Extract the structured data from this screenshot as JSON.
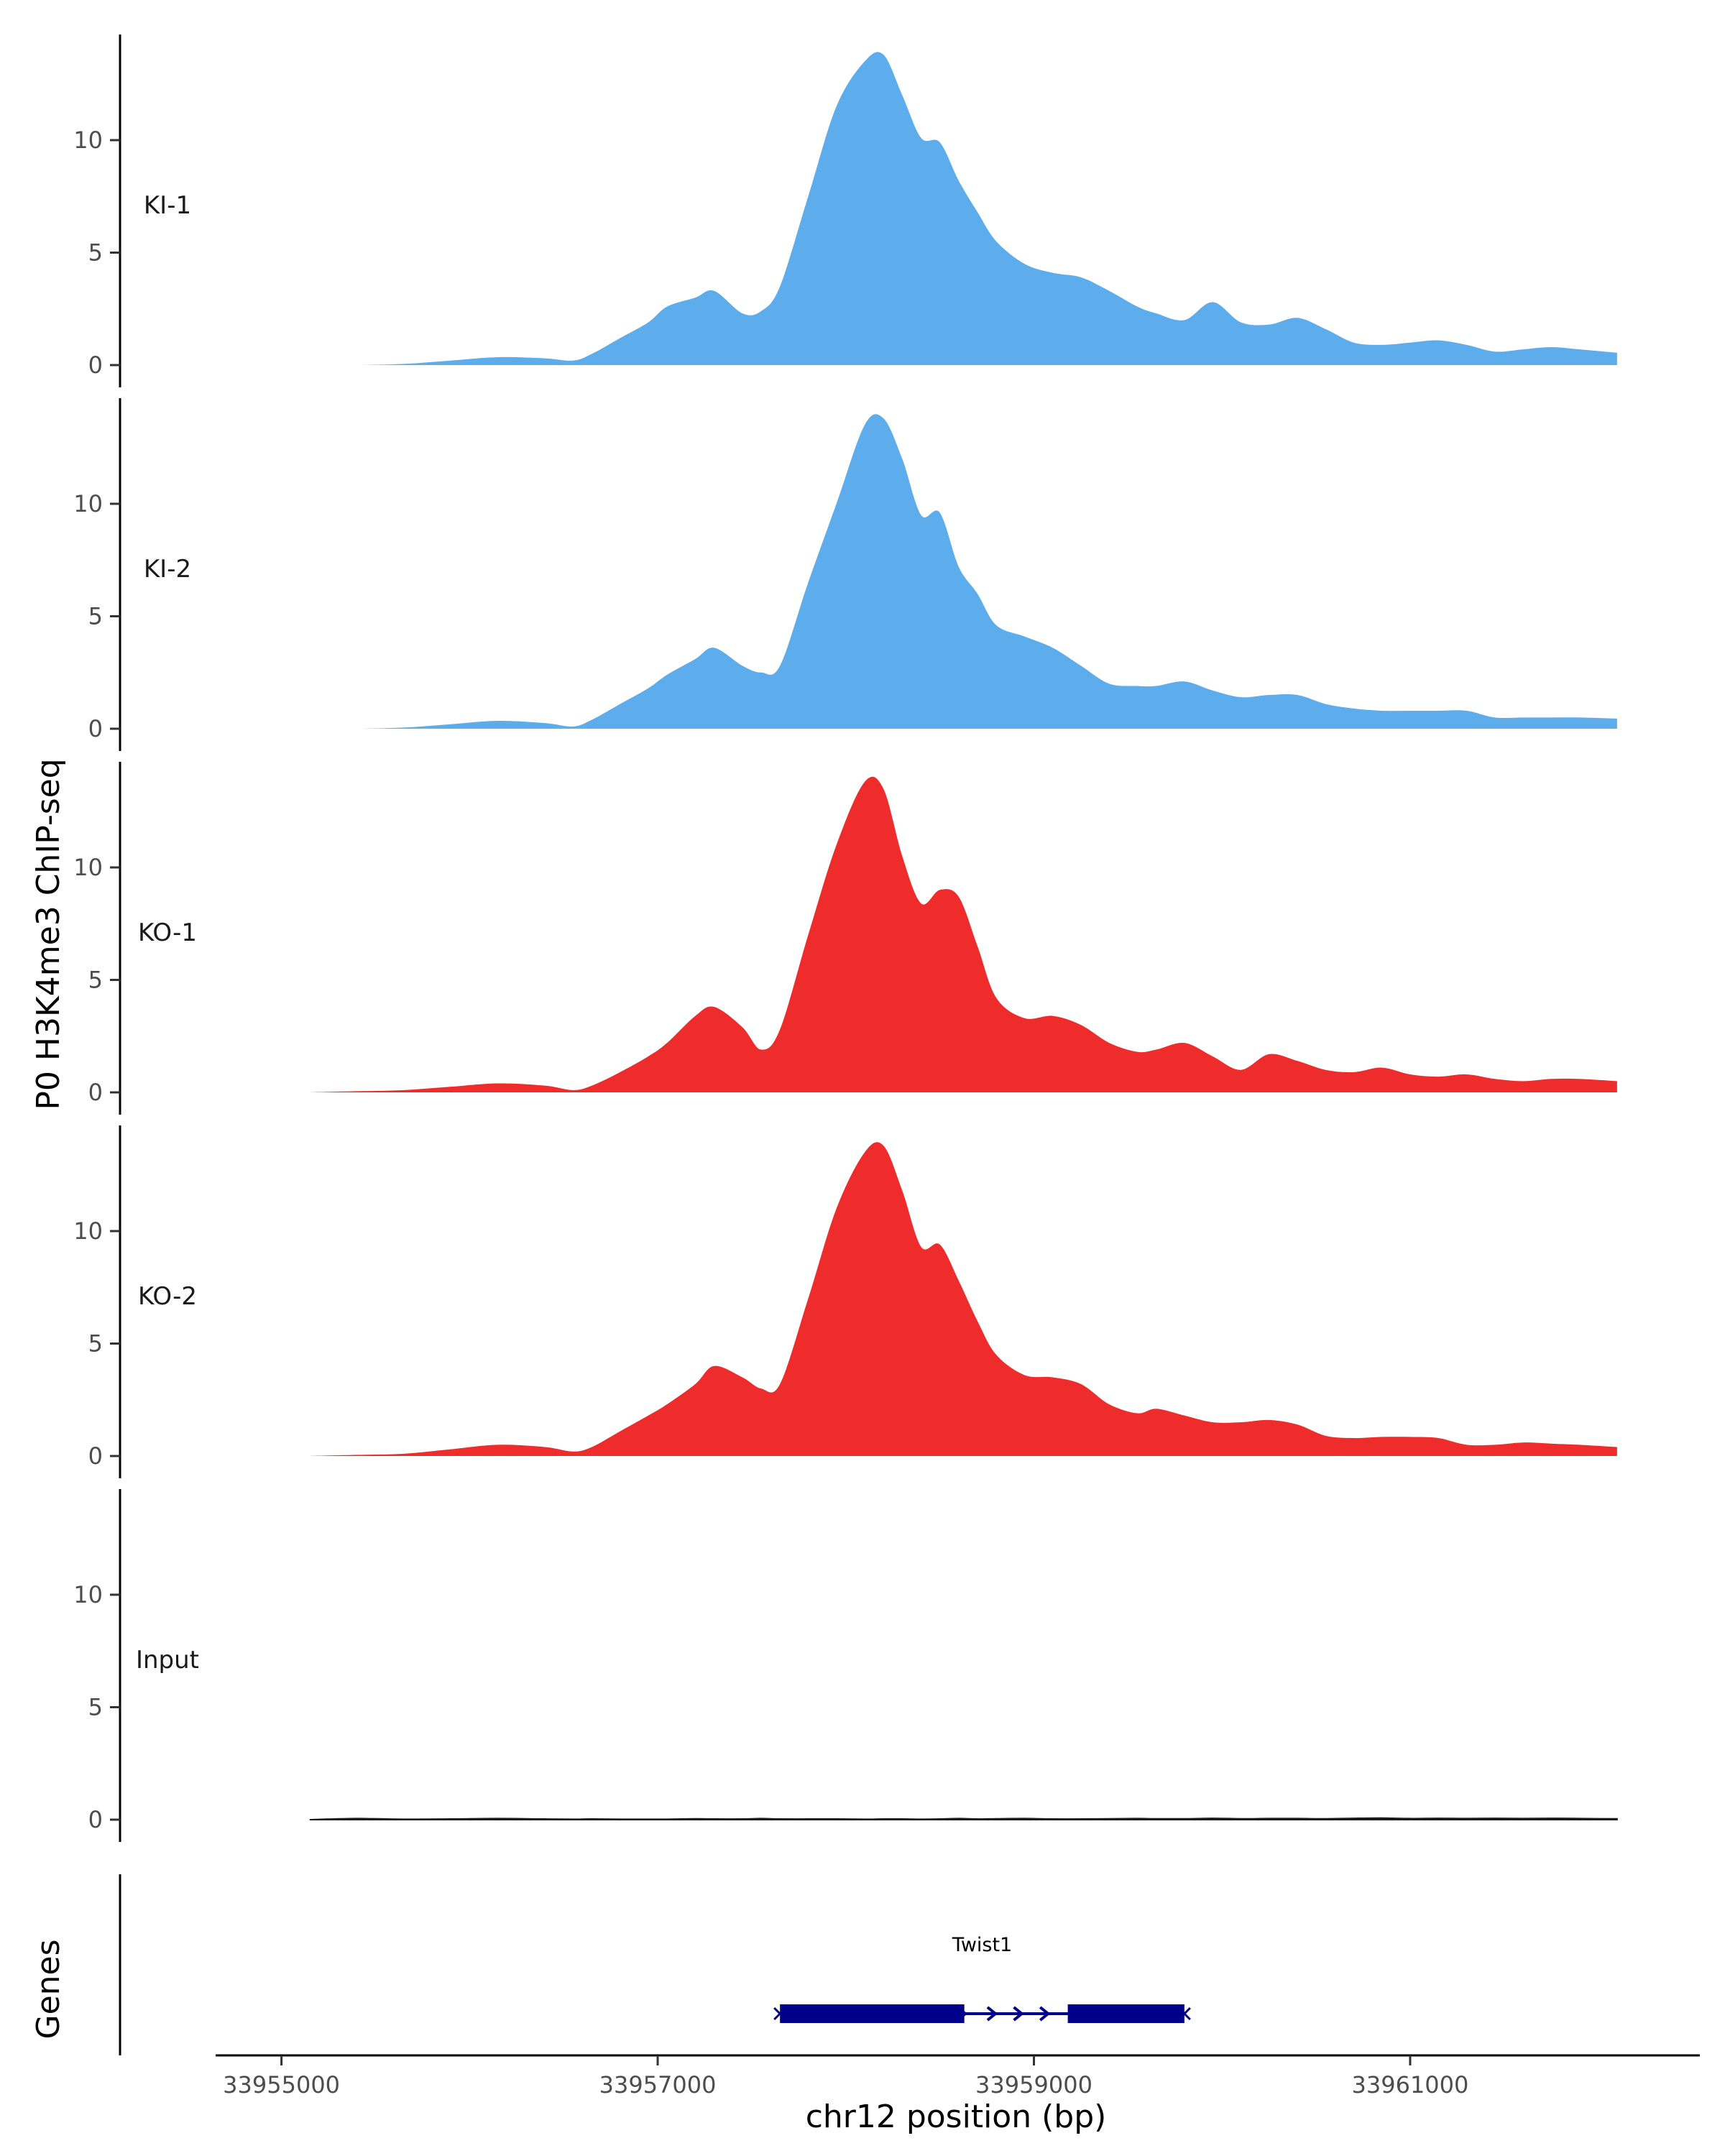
{
  "chart_data": {
    "type": "area",
    "title": "",
    "ylabel": "P0 H3K4me3 ChIP-seq",
    "xlabel": "chr12 position (bp)",
    "genes_label": "Genes",
    "xlim": [
      33954650,
      33962540
    ],
    "ylim": [
      0,
      14.6
    ],
    "x_ticks": [
      33955000,
      33957000,
      33959000,
      33961000
    ],
    "x_tick_labels": [
      "33955000",
      "33957000",
      "33959000",
      "33961000"
    ],
    "y_ticks": [
      0,
      5,
      10
    ],
    "y_tick_labels": [
      "0",
      "5",
      "10"
    ],
    "x": [
      33955150,
      33955400,
      33955650,
      33955900,
      33956150,
      33956400,
      33956550,
      33956650,
      33956800,
      33956950,
      33957050,
      33957200,
      33957300,
      33957450,
      33957550,
      33957650,
      33957800,
      33957950,
      33958100,
      33958200,
      33958300,
      33958400,
      33958500,
      33958600,
      33958700,
      33958800,
      33958950,
      33959100,
      33959250,
      33959400,
      33959550,
      33959650,
      33959800,
      33959950,
      33960100,
      33960250,
      33960400,
      33960550,
      33960700,
      33960850,
      33961000,
      33961150,
      33961300,
      33961450,
      33961600,
      33961750,
      33961900,
      33962100
    ],
    "series": [
      {
        "name": "KI-1",
        "color": "#5DADEC",
        "values": [
          0,
          0,
          0.05,
          0.2,
          0.35,
          0.3,
          0.2,
          0.5,
          1.2,
          1.9,
          2.6,
          3.0,
          3.3,
          2.3,
          2.4,
          3.5,
          7.5,
          11.5,
          13.5,
          13.8,
          12.0,
          10.1,
          9.9,
          8.2,
          6.8,
          5.5,
          4.5,
          4.1,
          3.9,
          3.3,
          2.6,
          2.3,
          2.0,
          2.8,
          1.9,
          1.8,
          2.1,
          1.6,
          1.0,
          0.9,
          1.0,
          1.1,
          0.9,
          0.6,
          0.7,
          0.8,
          0.7,
          0.55
        ]
      },
      {
        "name": "KI-2",
        "color": "#5DADEC",
        "values": [
          0,
          0,
          0.05,
          0.2,
          0.35,
          0.25,
          0.1,
          0.4,
          1.1,
          1.8,
          2.4,
          3.1,
          3.6,
          2.8,
          2.5,
          2.8,
          6.5,
          10.0,
          13.5,
          13.8,
          12.0,
          9.5,
          9.6,
          7.2,
          6.0,
          4.6,
          4.1,
          3.6,
          2.8,
          2.0,
          1.9,
          1.9,
          2.1,
          1.7,
          1.4,
          1.5,
          1.5,
          1.1,
          0.9,
          0.8,
          0.8,
          0.8,
          0.8,
          0.5,
          0.5,
          0.5,
          0.5,
          0.45
        ]
      },
      {
        "name": "KO-1",
        "color": "#EE2C2C",
        "values": [
          0,
          0.05,
          0.1,
          0.25,
          0.4,
          0.3,
          0.1,
          0.3,
          0.9,
          1.6,
          2.2,
          3.4,
          3.8,
          2.9,
          1.9,
          2.8,
          7.0,
          11.0,
          13.8,
          13.5,
          10.5,
          8.4,
          9.0,
          8.7,
          6.5,
          4.2,
          3.3,
          3.4,
          3.0,
          2.2,
          1.8,
          1.9,
          2.2,
          1.6,
          1.0,
          1.7,
          1.4,
          1.0,
          0.9,
          1.1,
          0.8,
          0.7,
          0.8,
          0.6,
          0.5,
          0.6,
          0.6,
          0.5
        ]
      },
      {
        "name": "KO-2",
        "color": "#EE2C2C",
        "values": [
          0,
          0.05,
          0.1,
          0.3,
          0.5,
          0.4,
          0.2,
          0.4,
          1.1,
          1.8,
          2.3,
          3.2,
          4.0,
          3.5,
          3.0,
          3.2,
          7.0,
          11.0,
          13.5,
          13.8,
          11.8,
          9.3,
          9.4,
          7.8,
          6.0,
          4.5,
          3.6,
          3.5,
          3.2,
          2.3,
          1.9,
          2.1,
          1.8,
          1.5,
          1.5,
          1.6,
          1.4,
          0.9,
          0.8,
          0.85,
          0.85,
          0.8,
          0.5,
          0.5,
          0.6,
          0.55,
          0.5,
          0.4
        ]
      },
      {
        "name": "Input",
        "color": "#1a1a1a",
        "values": [
          0,
          0.05,
          0.02,
          0.03,
          0.05,
          0.03,
          0.02,
          0.03,
          0.02,
          0.02,
          0.02,
          0.04,
          0.03,
          0.03,
          0.05,
          0.03,
          0.03,
          0.03,
          0.02,
          0.03,
          0.03,
          0.02,
          0.03,
          0.05,
          0.03,
          0.04,
          0.05,
          0.03,
          0.03,
          0.04,
          0.05,
          0.04,
          0.04,
          0.06,
          0.04,
          0.05,
          0.05,
          0.04,
          0.06,
          0.07,
          0.05,
          0.06,
          0.05,
          0.06,
          0.05,
          0.06,
          0.05,
          0.04
        ]
      }
    ],
    "gene": {
      "name": "Twist1",
      "color": "#00008B",
      "tx_start": 33957650,
      "tx_end": 33959800,
      "exons": [
        [
          33957650,
          33958630
        ],
        [
          33959180,
          33959800
        ]
      ],
      "strand": "+",
      "direction_arrows": [
        33958620,
        33958780,
        33958920,
        33959060
      ]
    }
  }
}
